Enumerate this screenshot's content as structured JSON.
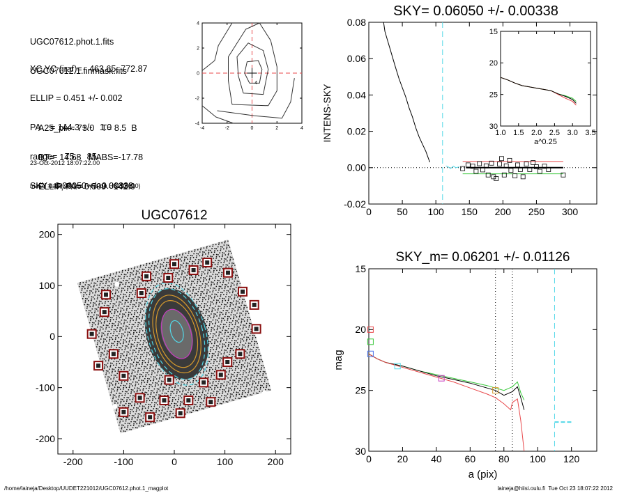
{
  "info": {
    "header_lines": [
      "UGC07612.phot.1.fits",
      "UGC07612.1.finmask.fits"
    ],
    "params_lines": [
      "XC,YC (iraf)=   463.65, 772.87",
      "ELLIP = 0.451 +/- 0.002",
      "PA    = 144.3 +/-   1.0",
      "range=   75.-   85.",
      "SKY= 0.06050 +/- 0.00338"
    ],
    "extra_lines": [
      "A25_pix= 73.0   T= 8.5  B",
      "BT=  14.68   MABS=-17.78",
      "ELLIP, PA= 0.509   142.0"
    ],
    "date_line": "23-Oct-2012 18:07:22.00",
    "program_line": "make_datalist0.pro (version HS230610)"
  },
  "footer": {
    "path": "/home/laineja/Desktop/UUDET221012/UGC07612.phot.1_magplot",
    "user_time": "laineja@hiisi.oulu.fi  Tue Oct 23 18:07:22 2012"
  },
  "colors": {
    "red": "#e8474a",
    "green": "#39c83c",
    "cyan": "#53d8e8",
    "blue": "#4a6fe8",
    "magenta": "#c63cc0",
    "orange": "#d69a2e",
    "box_red": "#8b1010"
  },
  "chart_data": [
    {
      "id": "contour_center",
      "type": "contour",
      "xlim": [
        -4,
        4
      ],
      "ylim": [
        -4,
        4
      ],
      "xticks": [
        "-4",
        "-2",
        "0",
        "2",
        "4"
      ],
      "yticks": [
        "-4",
        "-2",
        "0",
        "2",
        "4"
      ],
      "center_label": "4",
      "crosshair": [
        0,
        0
      ],
      "contours": [
        [
          [
            -0.2,
            -0.8
          ],
          [
            0.6,
            -0.8
          ],
          [
            0.8,
            0.3
          ],
          [
            0.5,
            1.0
          ],
          [
            -0.4,
            0.9
          ],
          [
            -0.6,
            0
          ]
        ],
        [
          [
            -0.7,
            -1.6
          ],
          [
            0.9,
            -1.7
          ],
          [
            1.3,
            0.3
          ],
          [
            0.9,
            1.8
          ],
          [
            -0.3,
            2.4
          ],
          [
            -1.2,
            1.3
          ],
          [
            -1.1,
            -0.2
          ]
        ],
        [
          [
            -1.6,
            -2.5
          ],
          [
            1.3,
            -2.6
          ],
          [
            2.0,
            -1.4
          ],
          [
            2.0,
            0.5
          ],
          [
            1.5,
            2.6
          ],
          [
            0.6,
            4
          ],
          [
            -0.5,
            3.5
          ],
          [
            -1.9,
            1.3
          ],
          [
            -1.9,
            -0.6
          ]
        ],
        [
          [
            -2.8,
            -3.0
          ],
          [
            0.2,
            -3.4
          ],
          [
            2.4,
            -3.6
          ],
          [
            3.1,
            -2.3
          ],
          [
            3.4,
            -0.4
          ]
        ],
        [
          [
            -4,
            -2.6
          ],
          [
            -2.9,
            -3.5
          ],
          [
            -1.5,
            -4
          ]
        ],
        [
          [
            -4,
            0.2
          ],
          [
            -3.0,
            1.0
          ],
          [
            -2.7,
            2.2
          ],
          [
            -1.6,
            4
          ]
        ]
      ]
    },
    {
      "id": "sky_profile",
      "type": "line",
      "title": "SKY= 0.06050 +/- 0.00338",
      "xlabel": "",
      "ylabel": "INTENS-SKY",
      "xlim": [
        0,
        340
      ],
      "ylim": [
        -0.02,
        0.08
      ],
      "xticks": [
        "0",
        "50",
        "100",
        "150",
        "200",
        "250",
        "300"
      ],
      "yticks": [
        "-0.02",
        "0.00",
        "0.02",
        "0.04",
        "0.06",
        "0.08"
      ],
      "profile": [
        [
          22,
          0.08
        ],
        [
          24,
          0.075
        ],
        [
          28,
          0.07
        ],
        [
          32,
          0.065
        ],
        [
          36,
          0.06
        ],
        [
          40,
          0.055
        ],
        [
          45,
          0.049
        ],
        [
          50,
          0.044
        ],
        [
          55,
          0.039
        ],
        [
          60,
          0.033
        ],
        [
          65,
          0.028
        ],
        [
          70,
          0.022
        ],
        [
          75,
          0.017
        ],
        [
          80,
          0.013
        ],
        [
          85,
          0.009
        ],
        [
          88,
          0.006
        ],
        [
          91,
          0.003
        ]
      ],
      "sky_window_start": 110,
      "sky_samples": [
        [
          115,
          0.001
        ],
        [
          118,
          0.0005
        ],
        [
          122,
          -0.0005
        ],
        [
          126,
          0.0008
        ],
        [
          130,
          0
        ],
        [
          135,
          0.0005
        ]
      ],
      "boxes": [
        [
          140,
          -0.0005
        ],
        [
          148,
          0.0015
        ],
        [
          155,
          0.0008
        ],
        [
          160,
          -0.002
        ],
        [
          165,
          0.0022
        ],
        [
          170,
          -0.0012
        ],
        [
          175,
          0.001
        ],
        [
          178,
          -0.004
        ],
        [
          183,
          0.0025
        ],
        [
          186,
          -0.005
        ],
        [
          190,
          -0.006
        ],
        [
          195,
          0.002
        ],
        [
          198,
          0.005
        ],
        [
          202,
          -0.004
        ],
        [
          205,
          0.001
        ],
        [
          210,
          0.004
        ],
        [
          212,
          -0.0015
        ],
        [
          218,
          -0.0045
        ],
        [
          222,
          0.0015
        ],
        [
          226,
          -0.001
        ],
        [
          230,
          -0.005
        ],
        [
          235,
          0.002
        ],
        [
          240,
          -0.001
        ],
        [
          245,
          0.0028
        ],
        [
          250,
          0.0005
        ],
        [
          255,
          -0.002
        ],
        [
          262,
          0.0008
        ],
        [
          268,
          -0.001
        ],
        [
          290,
          -0.004
        ]
      ],
      "sky_mean": {
        "x": [
          145,
          290
        ],
        "y": 0.0
      },
      "sky_upper": {
        "x": [
          140,
          290
        ],
        "y": 0.0034
      },
      "sky_lower": {
        "x": [
          140,
          290
        ],
        "y": -0.0034
      }
    },
    {
      "id": "sky_inset",
      "type": "line",
      "xlabel": "a^0.25",
      "xlim": [
        1.0,
        3.5
      ],
      "ylim": [
        30,
        15
      ],
      "xticks": [
        "1.0",
        "1.5",
        "2.0",
        "2.5",
        "3.0",
        "3.5"
      ],
      "yticks": [
        "15",
        "20",
        "25",
        "30"
      ],
      "series": [
        {
          "color": "green",
          "points": [
            [
              1.0,
              22.3
            ],
            [
              1.2,
              22.7
            ],
            [
              1.4,
              23.2
            ],
            [
              1.6,
              23.6
            ],
            [
              1.8,
              23.8
            ],
            [
              2.0,
              24.0
            ],
            [
              2.2,
              24.2
            ],
            [
              2.4,
              24.4
            ],
            [
              2.6,
              24.9
            ],
            [
              2.8,
              25.2
            ],
            [
              3.0,
              25.6
            ],
            [
              3.1,
              26.1
            ]
          ]
        },
        {
          "color": "red",
          "points": [
            [
              1.0,
              22.3
            ],
            [
              1.2,
              22.7
            ],
            [
              1.4,
              23.2
            ],
            [
              1.6,
              23.6
            ],
            [
              1.8,
              23.8
            ],
            [
              2.0,
              24.0
            ],
            [
              2.2,
              24.2
            ],
            [
              2.4,
              24.4
            ],
            [
              2.6,
              25.0
            ],
            [
              2.8,
              25.6
            ],
            [
              3.0,
              26.1
            ],
            [
              3.1,
              26.7
            ]
          ]
        },
        {
          "color": "black",
          "points": [
            [
              1.0,
              22.3
            ],
            [
              1.2,
              22.7
            ],
            [
              1.4,
              23.2
            ],
            [
              1.6,
              23.6
            ],
            [
              1.8,
              23.8
            ],
            [
              2.0,
              24.0
            ],
            [
              2.2,
              24.2
            ],
            [
              2.4,
              24.4
            ],
            [
              2.6,
              24.9
            ],
            [
              2.8,
              25.3
            ],
            [
              3.0,
              25.8
            ],
            [
              3.1,
              26.4
            ]
          ]
        }
      ]
    },
    {
      "id": "galaxy_image",
      "type": "image",
      "title": "UGC07612",
      "xlim": [
        -230,
        230
      ],
      "ylim": [
        -230,
        220
      ],
      "xticks": [
        "-200",
        "-100",
        "0",
        "100",
        "200"
      ],
      "yticks": [
        "-200",
        "-100",
        "0",
        "100",
        "200"
      ],
      "rotation_deg": -16,
      "ellipses": [
        {
          "cx": 5,
          "cy": 10,
          "rx": 22,
          "ry": 12,
          "color": "cyan"
        },
        {
          "cx": 5,
          "cy": 5,
          "rx": 50,
          "ry": 28,
          "color": "magenta"
        },
        {
          "cx": 5,
          "cy": 5,
          "rx": 68,
          "ry": 38,
          "color": "orange"
        },
        {
          "cx": 5,
          "cy": 5,
          "rx": 79,
          "ry": 44,
          "color": "orange"
        },
        {
          "cx": 5,
          "cy": 5,
          "rx": 92,
          "ry": 51,
          "color": "cyan"
        },
        {
          "cx": 5,
          "cy": 5,
          "rx": 104,
          "ry": 57,
          "color": "cyan"
        }
      ],
      "boxes": [
        [
          0,
          142
        ],
        [
          65,
          145
        ],
        [
          38,
          130
        ],
        [
          -55,
          118
        ],
        [
          -12,
          115
        ],
        [
          106,
          125
        ],
        [
          -65,
          85
        ],
        [
          -135,
          82
        ],
        [
          135,
          88
        ],
        [
          -138,
          48
        ],
        [
          158,
          62
        ],
        [
          -163,
          5
        ],
        [
          162,
          15
        ],
        [
          -120,
          -34
        ],
        [
          130,
          -34
        ],
        [
          -150,
          -57
        ],
        [
          105,
          -50
        ],
        [
          -100,
          -77
        ],
        [
          92,
          -75
        ],
        [
          -10,
          -85
        ],
        [
          58,
          -90
        ],
        [
          -68,
          -120
        ],
        [
          -20,
          -125
        ],
        [
          28,
          -125
        ],
        [
          72,
          -128
        ],
        [
          -100,
          -148
        ],
        [
          -48,
          -158
        ],
        [
          12,
          -150
        ]
      ]
    },
    {
      "id": "mag_profile",
      "type": "line",
      "title": "SKY_m=  0.06201 +/- 0.01126",
      "xlabel": "a (pix)",
      "ylabel": "mag",
      "xlim": [
        0,
        135
      ],
      "ylim": [
        30,
        15
      ],
      "xticks": [
        "0",
        "20",
        "40",
        "60",
        "80",
        "100",
        "120"
      ],
      "yticks": [
        "15",
        "20",
        "25",
        "30"
      ],
      "dotted_x": [
        75,
        85
      ],
      "dashed_x": 110,
      "marker_boxes": [
        {
          "x": 1,
          "y": 20.0,
          "color": "red"
        },
        {
          "x": 1,
          "y": 21.0,
          "color": "green"
        },
        {
          "x": 1,
          "y": 22.0,
          "color": "blue"
        },
        {
          "x": 17,
          "y": 23.0,
          "color": "cyan"
        },
        {
          "x": 43,
          "y": 24.0,
          "color": "magenta"
        },
        {
          "x": 75,
          "y": 25.0,
          "color": "orange"
        }
      ],
      "series": [
        {
          "color": "green",
          "points": [
            [
              0,
              22.0
            ],
            [
              5,
              22.4
            ],
            [
              10,
              22.7
            ],
            [
              20,
              23.0
            ],
            [
              30,
              23.4
            ],
            [
              40,
              23.7
            ],
            [
              50,
              24.0
            ],
            [
              60,
              24.3
            ],
            [
              70,
              24.6
            ],
            [
              75,
              24.8
            ],
            [
              80,
              25.0
            ],
            [
              85,
              24.7
            ],
            [
              88,
              24.3
            ],
            [
              90,
              25.2
            ],
            [
              92,
              25.8
            ]
          ]
        },
        {
          "color": "black",
          "points": [
            [
              0,
              22.0
            ],
            [
              5,
              22.4
            ],
            [
              10,
              22.7
            ],
            [
              20,
              23.0
            ],
            [
              30,
              23.4
            ],
            [
              40,
              23.8
            ],
            [
              50,
              24.1
            ],
            [
              60,
              24.4
            ],
            [
              70,
              24.8
            ],
            [
              75,
              25.0
            ],
            [
              80,
              25.4
            ],
            [
              85,
              25.1
            ],
            [
              88,
              24.7
            ],
            [
              90,
              25.6
            ],
            [
              92,
              26.6
            ]
          ]
        },
        {
          "color": "red",
          "points": [
            [
              0,
              22.0
            ],
            [
              5,
              22.4
            ],
            [
              10,
              22.7
            ],
            [
              20,
              23.1
            ],
            [
              30,
              23.5
            ],
            [
              40,
              23.9
            ],
            [
              50,
              24.3
            ],
            [
              60,
              24.8
            ],
            [
              70,
              25.3
            ],
            [
              75,
              25.6
            ],
            [
              80,
              26.1
            ],
            [
              84,
              26.6
            ],
            [
              85,
              26.0
            ],
            [
              88,
              25.7
            ],
            [
              90,
              27.5
            ],
            [
              92,
              30
            ]
          ]
        }
      ],
      "cyan_tail": {
        "x": [
          110,
          120
        ],
        "y": 27.6
      }
    }
  ]
}
